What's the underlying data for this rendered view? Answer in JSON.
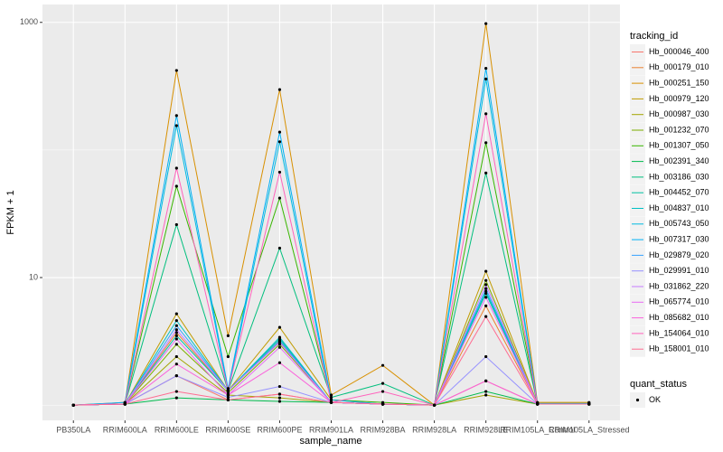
{
  "chart_data": {
    "type": "line",
    "x_label": "sample_name",
    "y_label": "FPKM + 1",
    "log_y": true,
    "grid": true,
    "categories": [
      "PB350LA",
      "RRIM600LA",
      "RRIM600LE",
      "RRIM600SE",
      "RRIM600PE",
      "RRIM901LA",
      "RRIM928BA",
      "RRIM928LA",
      "RRIM928LE",
      "RRIM105LA_Control",
      "RRIM105LA_Stressed"
    ],
    "ylim": [
      0.76,
      1380
    ],
    "yticks": [
      10,
      1000
    ],
    "legend_title": "tracking_id",
    "legend_position": "right",
    "point_color": "#000000",
    "shape_legend": {
      "title": "quant_status",
      "items": [
        "OK"
      ]
    },
    "series": [
      {
        "name": "Hb_000046_400",
        "color": "#F8766D",
        "values": [
          1,
          1.02,
          1.7,
          1.1,
          1.22,
          1.05,
          1.02,
          1,
          1.55,
          1.02,
          1.02
        ]
      },
      {
        "name": "Hb_000179_010",
        "color": "#EA8331",
        "values": [
          1,
          1.02,
          3.7,
          1.3,
          3.14,
          1.05,
          1.02,
          1,
          6.0,
          1.03,
          1.03
        ]
      },
      {
        "name": "Hb_000251_150",
        "color": "#D89000",
        "values": [
          1,
          1.05,
          420,
          3.5,
          297,
          1.2,
          2.05,
          1,
          978,
          1.05,
          1.05
        ]
      },
      {
        "name": "Hb_000979_120",
        "color": "#C09B00",
        "values": [
          1,
          1.02,
          5.2,
          1.3,
          4.07,
          1.1,
          1.02,
          1,
          11.2,
          1.03,
          1.03
        ]
      },
      {
        "name": "Hb_000987_030",
        "color": "#A3A500",
        "values": [
          1,
          1.02,
          2.4,
          1.2,
          1.14,
          1.05,
          1.02,
          1,
          1.2,
          1.02,
          1.02
        ]
      },
      {
        "name": "Hb_001232_070",
        "color": "#7CAE00",
        "values": [
          1,
          1.02,
          3.0,
          1.25,
          3.0,
          1.05,
          1.02,
          1,
          9.5,
          1.02,
          1.02
        ]
      },
      {
        "name": "Hb_001307_050",
        "color": "#39B600",
        "values": [
          1,
          1.02,
          52,
          2.4,
          42,
          1.1,
          1.05,
          1,
          114,
          1.03,
          1.03
        ]
      },
      {
        "name": "Hb_002391_340",
        "color": "#00BB4E",
        "values": [
          1,
          1.02,
          1.14,
          1.1,
          1.07,
          1.05,
          1.02,
          1,
          1.28,
          1.02,
          1.02
        ]
      },
      {
        "name": "Hb_003186_030",
        "color": "#00BF7D",
        "values": [
          1,
          1.02,
          26,
          1.3,
          17,
          1.15,
          1.48,
          1,
          66,
          1.02,
          1.02
        ]
      },
      {
        "name": "Hb_004452_070",
        "color": "#00C1A3",
        "values": [
          1,
          1.02,
          3.5,
          1.3,
          3.3,
          1.05,
          1.02,
          1,
          7.5,
          1.02,
          1.02
        ]
      },
      {
        "name": "Hb_004837_010",
        "color": "#00BFC4",
        "values": [
          1,
          1.02,
          4.6,
          1.3,
          3.4,
          1.05,
          1.02,
          1,
          7.8,
          1.02,
          1.02
        ]
      },
      {
        "name": "Hb_005743_050",
        "color": "#00BAE0",
        "values": [
          1,
          1.02,
          155,
          1.3,
          116,
          1.05,
          1.02,
          1,
          360,
          1.02,
          1.02
        ]
      },
      {
        "name": "Hb_007317_030",
        "color": "#00B0F6",
        "values": [
          1,
          1.05,
          186,
          1.35,
          138,
          1.1,
          1.02,
          1,
          436,
          1.03,
          1.03
        ]
      },
      {
        "name": "Hb_029879_020",
        "color": "#35A2FF",
        "values": [
          1,
          1.02,
          4.2,
          1.3,
          3.2,
          1.05,
          1.02,
          1,
          8.2,
          1.02,
          1.02
        ]
      },
      {
        "name": "Hb_029991_010",
        "color": "#9590FF",
        "values": [
          1,
          1.02,
          1.7,
          1.15,
          1.4,
          1.05,
          1.02,
          1,
          2.4,
          1.02,
          1.02
        ]
      },
      {
        "name": "Hb_031862_220",
        "color": "#C77CFF",
        "values": [
          1,
          1.02,
          3.9,
          1.3,
          3.1,
          1.05,
          1.02,
          1,
          8.8,
          1.02,
          1.02
        ]
      },
      {
        "name": "Hb_065774_010",
        "color": "#E76BF3",
        "values": [
          1,
          1.02,
          3.3,
          1.2,
          2.84,
          1.05,
          1.02,
          1,
          7.0,
          1.02,
          1.02
        ]
      },
      {
        "name": "Hb_085682_010",
        "color": "#FA62DB",
        "values": [
          1,
          1.02,
          2.1,
          1.2,
          2.15,
          1.05,
          1.02,
          1,
          1.55,
          1.02,
          1.02
        ]
      },
      {
        "name": "Hb_154064_010",
        "color": "#FF62BC",
        "values": [
          1,
          1.02,
          72,
          1.3,
          67,
          1.05,
          1.28,
          1,
          192,
          1.02,
          1.02
        ]
      },
      {
        "name": "Hb_158001_010",
        "color": "#FF6C91",
        "values": [
          1,
          1.02,
          1.28,
          1.1,
          1.22,
          1.05,
          1.02,
          1,
          4.95,
          1.02,
          1.02
        ]
      }
    ]
  }
}
